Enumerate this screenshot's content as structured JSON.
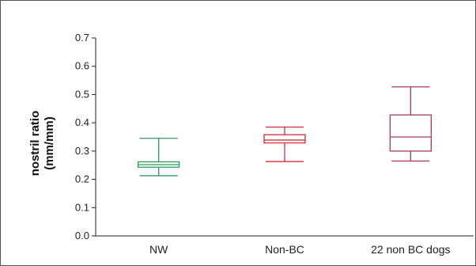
{
  "chart_data": {
    "type": "box",
    "ylabel_line1": "nostril ratio",
    "ylabel_line2": "(mm/mm)",
    "ylim": [
      0,
      0.7
    ],
    "yticks": [
      "0.0",
      "0.1",
      "0.2",
      "0.3",
      "0.4",
      "0.5",
      "0.6",
      "0.7"
    ],
    "categories": [
      "NW",
      "Non-BC",
      "22 non BC dogs"
    ],
    "series": [
      {
        "category": "NW",
        "min": 0.213,
        "q1": 0.243,
        "median": 0.252,
        "q3": 0.262,
        "max": 0.345,
        "color": "#2e9a5e"
      },
      {
        "category": "Non-BC",
        "min": 0.263,
        "q1": 0.329,
        "median": 0.339,
        "q3": 0.358,
        "max": 0.385,
        "color": "#d62b3a"
      },
      {
        "category": "22 non BC dogs",
        "min": 0.265,
        "q1": 0.3,
        "median": 0.35,
        "q3": 0.428,
        "max": 0.527,
        "color": "#a83a55"
      }
    ],
    "grid": false,
    "legend": "none"
  }
}
